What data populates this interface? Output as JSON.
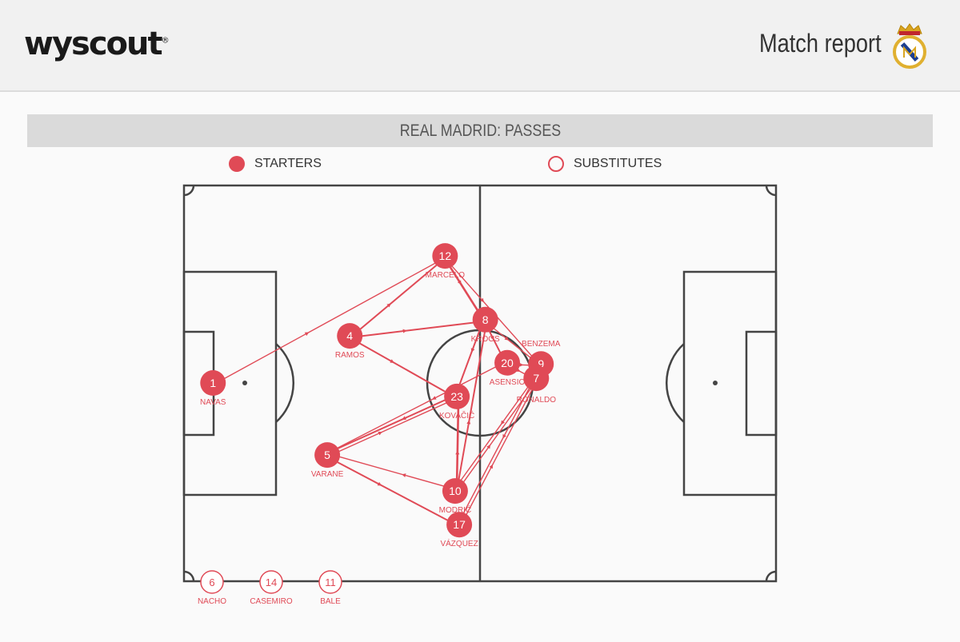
{
  "header": {
    "logo": "wyscout",
    "registered": "®",
    "title": "Match report",
    "crest": "real-madrid-crest"
  },
  "section_title": "REAL MADRID: PASSES",
  "legend": {
    "starters": "STARTERS",
    "substitutes": "SUBSTITUTES"
  },
  "colors": {
    "accent": "#e04a56",
    "pitch_line": "#444444"
  },
  "players": [
    {
      "number": "1",
      "name": "NAVAS",
      "x": 4.9,
      "y": 49.9
    },
    {
      "number": "12",
      "name": "MARCELO",
      "x": 44.1,
      "y": 17.8
    },
    {
      "number": "4",
      "name": "RAMOS",
      "x": 28.0,
      "y": 38.0
    },
    {
      "number": "8",
      "name": "KROOS",
      "x": 50.9,
      "y": 33.9
    },
    {
      "number": "20",
      "name": "ASENSIO",
      "x": 54.6,
      "y": 44.8
    },
    {
      "number": "9",
      "name": "BENZEMA",
      "x": 60.3,
      "y": 45.1
    },
    {
      "number": "7",
      "name": "RONALDO",
      "x": 59.5,
      "y": 48.7
    },
    {
      "number": "23",
      "name": "KOVAČIĆ",
      "x": 46.1,
      "y": 53.3
    },
    {
      "number": "5",
      "name": "VARANE",
      "x": 24.2,
      "y": 68.1
    },
    {
      "number": "10",
      "name": "MODRIĆ",
      "x": 45.8,
      "y": 77.2
    },
    {
      "number": "17",
      "name": "VÁZQUEZ",
      "x": 46.5,
      "y": 85.7
    }
  ],
  "substitutes": [
    {
      "number": "6",
      "name": "NACHO"
    },
    {
      "number": "14",
      "name": "CASEMIRO"
    },
    {
      "number": "11",
      "name": "BALE"
    }
  ],
  "passes": [
    [
      "1",
      "12",
      1
    ],
    [
      "4",
      "12",
      2
    ],
    [
      "4",
      "8",
      2
    ],
    [
      "4",
      "23",
      2
    ],
    [
      "12",
      "8",
      3
    ],
    [
      "12",
      "9",
      1
    ],
    [
      "8",
      "20",
      2
    ],
    [
      "8",
      "9",
      1
    ],
    [
      "8",
      "23",
      2
    ],
    [
      "10",
      "8",
      2
    ],
    [
      "20",
      "9",
      1
    ],
    [
      "20",
      "7",
      1
    ],
    [
      "20",
      "5",
      1
    ],
    [
      "23",
      "5",
      2
    ],
    [
      "5",
      "23",
      1
    ],
    [
      "10",
      "5",
      1
    ],
    [
      "5",
      "17",
      2
    ],
    [
      "10",
      "23",
      3
    ],
    [
      "10",
      "7",
      1
    ],
    [
      "7",
      "10",
      1
    ],
    [
      "17",
      "7",
      1
    ],
    [
      "7",
      "17",
      1
    ]
  ]
}
